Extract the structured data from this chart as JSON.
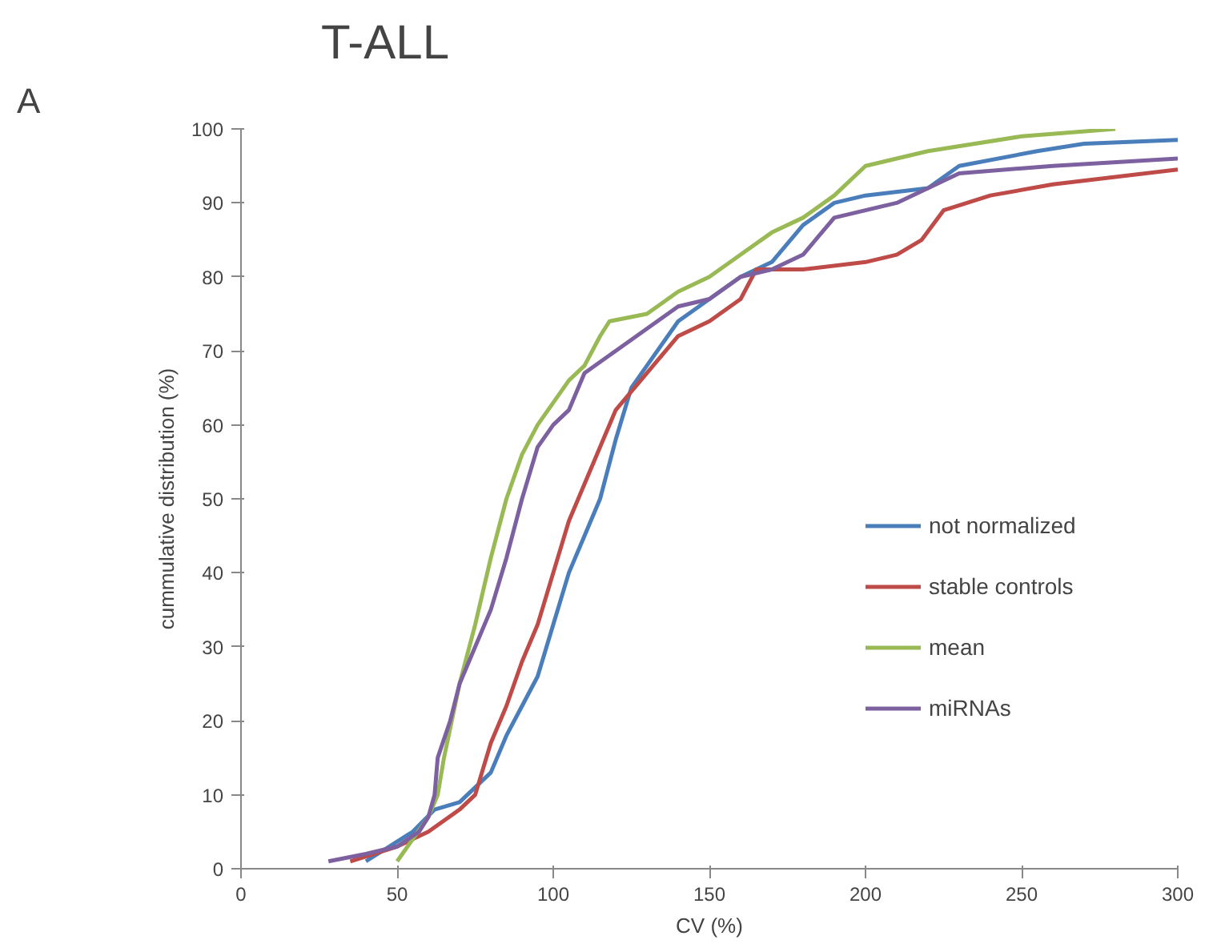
{
  "chart_data": {
    "type": "line",
    "title": "T-ALL",
    "xlabel": "CV (%)",
    "ylabel": "cummulative distribution (%)",
    "annotations": [
      "A"
    ],
    "xlim": [
      0,
      300
    ],
    "xticks": [
      0,
      50,
      100,
      150,
      200,
      250,
      300
    ],
    "ylim": [
      0,
      100
    ],
    "yticks": [
      0,
      10,
      20,
      30,
      40,
      50,
      60,
      70,
      80,
      90,
      100
    ],
    "grid": false,
    "legend": "right",
    "marker": "none",
    "line_style": "solid",
    "series": [
      {
        "name": "not normalized",
        "color": "#4a7ebb",
        "x": [
          40,
          55,
          62,
          70,
          80,
          85,
          90,
          95,
          100,
          105,
          110,
          115,
          120,
          125,
          130,
          140,
          150,
          160,
          170,
          180,
          190,
          200,
          220,
          230,
          255,
          270,
          300
        ],
        "values": [
          1,
          5,
          8,
          9,
          13,
          18,
          22,
          26,
          33,
          40,
          45,
          50,
          58,
          65,
          68,
          74,
          77,
          80,
          82,
          87,
          90,
          91,
          92,
          95,
          97,
          98,
          98.5
        ]
      },
      {
        "name": "stable controls",
        "color": "#be4b48",
        "x": [
          35,
          50,
          60,
          70,
          75,
          80,
          85,
          90,
          95,
          100,
          105,
          110,
          115,
          120,
          130,
          140,
          150,
          160,
          165,
          180,
          200,
          210,
          218,
          225,
          240,
          260,
          300
        ],
        "values": [
          1,
          3,
          5,
          8,
          10,
          17,
          22,
          28,
          33,
          40,
          47,
          52,
          57,
          62,
          67,
          72,
          74,
          77,
          81,
          81,
          82,
          83,
          85,
          89,
          91,
          92.5,
          94.5
        ]
      },
      {
        "name": "mean",
        "color": "#98b954",
        "x": [
          50,
          55,
          60,
          63,
          65,
          70,
          75,
          80,
          85,
          90,
          95,
          100,
          105,
          110,
          115,
          118,
          130,
          140,
          150,
          160,
          170,
          180,
          190,
          200,
          220,
          250,
          280
        ],
        "values": [
          1,
          4,
          7,
          10,
          15,
          25,
          33,
          42,
          50,
          56,
          60,
          63,
          66,
          68,
          72,
          74,
          75,
          78,
          80,
          83,
          86,
          88,
          91,
          95,
          97,
          99,
          100
        ]
      },
      {
        "name": "miRNAs",
        "color": "#7d60a0",
        "x": [
          28,
          40,
          50,
          57,
          60,
          62,
          63,
          67,
          70,
          75,
          80,
          85,
          90,
          95,
          100,
          105,
          110,
          120,
          130,
          140,
          150,
          160,
          170,
          180,
          190,
          210,
          220,
          230,
          260,
          300
        ],
        "values": [
          1,
          2,
          3,
          5,
          7,
          10,
          15,
          20,
          25,
          30,
          35,
          42,
          50,
          57,
          60,
          62,
          67,
          70,
          73,
          76,
          77,
          80,
          81,
          83,
          88,
          90,
          92,
          94,
          95,
          96
        ]
      }
    ]
  }
}
